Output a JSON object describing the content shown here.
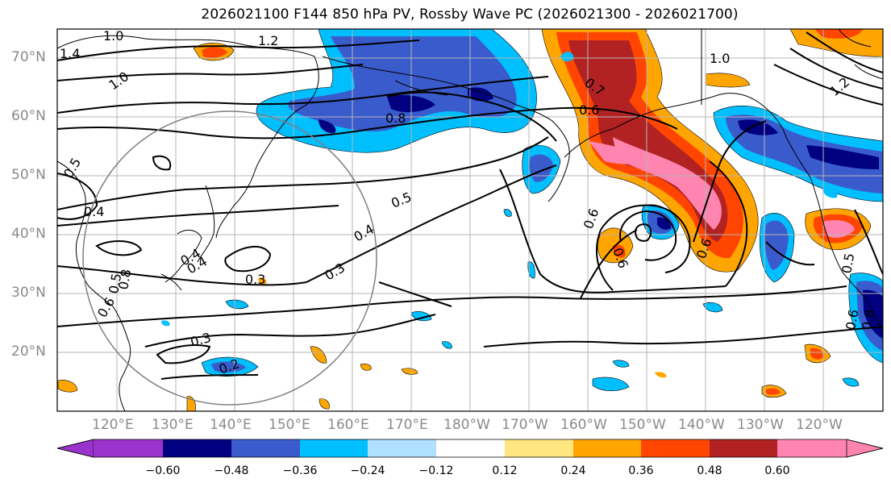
{
  "title": "2026021100 F144 850 hPa PV, Rossby Wave PC (2026021300 - 2026021700)",
  "lat_labels": [
    "70°N",
    "60°N",
    "50°N",
    "40°N",
    "30°N",
    "20°N"
  ],
  "lon_labels": [
    "120°E",
    "130°E",
    "140°E",
    "150°E",
    "160°E",
    "170°E",
    "180°W",
    "170°W",
    "160°W",
    "150°W",
    "140°W",
    "130°W",
    "120°W"
  ],
  "colorbar": {
    "ticks": [
      "−0.60",
      "−0.48",
      "−0.36",
      "−0.24",
      "−0.12",
      "0.12",
      "0.24",
      "0.36",
      "0.48",
      "0.60"
    ],
    "colors": [
      "#9933cc",
      "#000080",
      "#3a5bcc",
      "#00bfff",
      "#b0e0ff",
      "#ffffff",
      "#ffe680",
      "#ffa500",
      "#ff4500",
      "#b22222",
      "#ff85b0",
      "#ff85b0"
    ]
  },
  "contour_labels": [
    "1.0",
    "1.4",
    "1.2",
    "1.0",
    "1.0",
    "1.2",
    "0.8",
    "0.6",
    "0.7",
    "0.5",
    "0.4",
    "0.4",
    "0.3",
    "0.3",
    "0.3",
    "0.2",
    "0.5",
    "0.6",
    "0.4",
    "0.6",
    "0.6",
    "0.6",
    "0.5",
    "0.6",
    "0.8",
    "0.5",
    "0.4",
    "0.8"
  ]
}
